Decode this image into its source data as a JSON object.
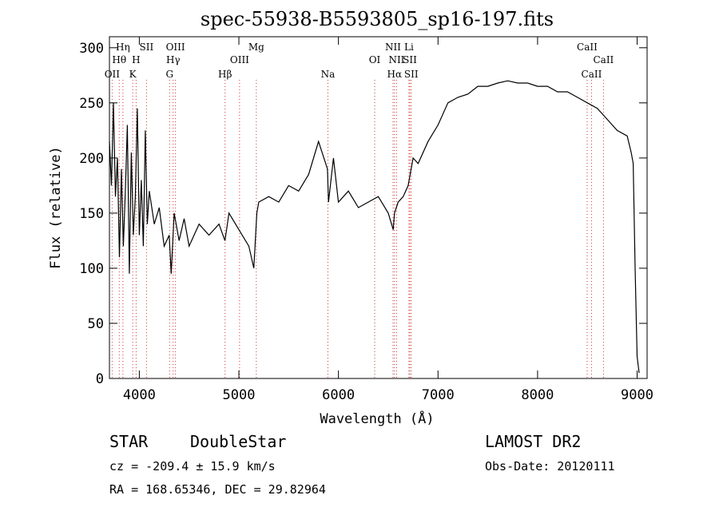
{
  "chart_data": {
    "type": "line",
    "title": "spec-55938-B5593805_sp16-197.fits",
    "xlabel": "Wavelength (Å)",
    "ylabel": "Flux (relative)",
    "xlim": [
      3700,
      9100
    ],
    "ylim": [
      0,
      310
    ],
    "x_ticks": [
      4000,
      5000,
      6000,
      7000,
      8000,
      9000
    ],
    "y_ticks": [
      0,
      50,
      100,
      150,
      200,
      250,
      300
    ],
    "grid": false,
    "line_color": "#000000",
    "marker_color": "#cc3333",
    "series": [
      {
        "x": [
          3700,
          3720,
          3740,
          3760,
          3780,
          3800,
          3820,
          3840,
          3860,
          3880,
          3900,
          3920,
          3940,
          3960,
          3980,
          4000,
          4020,
          4040,
          4060,
          4080,
          4100,
          4150,
          4200,
          4250,
          4300,
          4320,
          4350,
          4400,
          4450,
          4500,
          4600,
          4700,
          4800,
          4860,
          4900,
          5000,
          5100,
          5150,
          5180,
          5200,
          5300,
          5400,
          5500,
          5600,
          5700,
          5800,
          5890,
          5900,
          5950,
          6000,
          6100,
          6200,
          6300,
          6400,
          6500,
          6550,
          6563,
          6600,
          6650,
          6700,
          6750,
          6800,
          6900,
          7000,
          7100,
          7200,
          7300,
          7400,
          7500,
          7600,
          7700,
          7800,
          7900,
          8000,
          8100,
          8200,
          8300,
          8400,
          8500,
          8600,
          8650,
          8700,
          8800,
          8900,
          8940,
          8960,
          8980,
          9000,
          9020
        ],
        "y": [
          215,
          175,
          250,
          165,
          200,
          110,
          190,
          120,
          170,
          230,
          95,
          205,
          130,
          165,
          245,
          130,
          180,
          120,
          225,
          140,
          170,
          140,
          155,
          120,
          130,
          95,
          150,
          125,
          145,
          120,
          140,
          130,
          140,
          125,
          150,
          135,
          120,
          100,
          150,
          160,
          165,
          160,
          175,
          170,
          185,
          215,
          190,
          160,
          200,
          160,
          170,
          155,
          160,
          165,
          150,
          135,
          150,
          160,
          165,
          175,
          200,
          195,
          215,
          230,
          250,
          255,
          258,
          265,
          265,
          268,
          270,
          268,
          268,
          265,
          265,
          260,
          260,
          255,
          250,
          245,
          240,
          235,
          225,
          220,
          205,
          195,
          100,
          20,
          5
        ]
      }
    ],
    "lines": [
      {
        "label": "OII",
        "wavelength": 3727,
        "row": 3
      },
      {
        "label": "Hθ",
        "wavelength": 3798,
        "row": 2
      },
      {
        "label": "Hη",
        "wavelength": 3835,
        "row": 1
      },
      {
        "label": "H",
        "wavelength": 3968,
        "row": 2
      },
      {
        "label": "K",
        "wavelength": 3934,
        "row": 3
      },
      {
        "label": "SII",
        "wavelength": 4072,
        "row": 1
      },
      {
        "label": "OIII",
        "wavelength": 4363,
        "row": 1
      },
      {
        "label": "Hγ",
        "wavelength": 4340,
        "row": 2
      },
      {
        "label": "G",
        "wavelength": 4304,
        "row": 3
      },
      {
        "label": "Hβ",
        "wavelength": 4861,
        "row": 3
      },
      {
        "label": "OIII",
        "wavelength": 5007,
        "row": 2
      },
      {
        "label": "Mg",
        "wavelength": 5175,
        "row": 1
      },
      {
        "label": "Na",
        "wavelength": 5894,
        "row": 3
      },
      {
        "label": "OI",
        "wavelength": 6364,
        "row": 2
      },
      {
        "label": "NII",
        "wavelength": 6548,
        "row": 1
      },
      {
        "label": "Li",
        "wavelength": 6708,
        "row": 1
      },
      {
        "label": "NII",
        "wavelength": 6584,
        "row": 2
      },
      {
        "label": "SII",
        "wavelength": 6717,
        "row": 2
      },
      {
        "label": "Hα",
        "wavelength": 6563,
        "row": 3
      },
      {
        "label": "SII",
        "wavelength": 6731,
        "row": 3
      },
      {
        "label": "CaII",
        "wavelength": 8498,
        "row": 1
      },
      {
        "label": "CaII",
        "wavelength": 8662,
        "row": 2
      },
      {
        "label": "CaII",
        "wavelength": 8542,
        "row": 3
      }
    ]
  },
  "info": {
    "class_label": "STAR",
    "subclass_label": "DoubleStar",
    "survey": "LAMOST DR2",
    "cz": "cz = -209.4 ± 15.9 km/s",
    "obs_date": "Obs-Date: 20120111",
    "coords": "RA = 168.65346, DEC =  29.82964"
  }
}
